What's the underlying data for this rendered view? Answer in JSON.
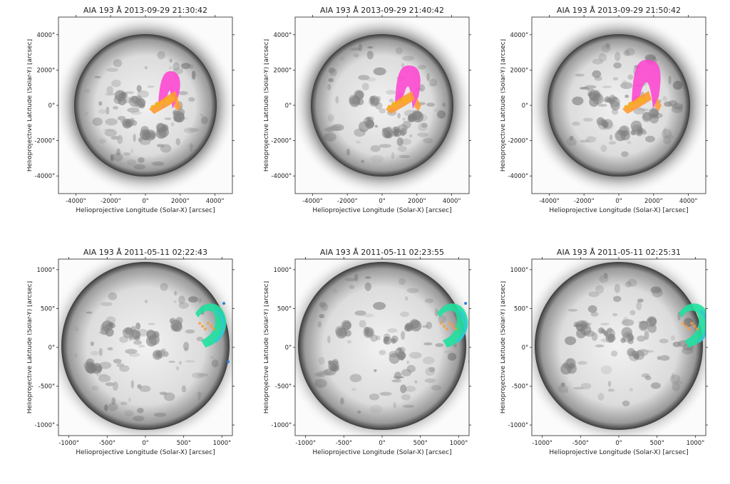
{
  "figure": {
    "panels": [
      {
        "title": "AIA 193 Å 2013-09-29 21:30:42",
        "xlabel": "Helioprojective Longitude (Solar-X) [arcsec]",
        "ylabel": "Helioprojective Latitude (Solar-Y) [arcsec]",
        "xticks": [
          "-4000\"",
          "-2000\"",
          "0\"",
          "2000\"",
          "4000\""
        ],
        "yticks": [
          "4000\"",
          "2000\"",
          "0\"",
          "-2000\"",
          "-4000\""
        ],
        "overlay": "magenta-orange"
      },
      {
        "title": "AIA 193 Å 2013-09-29 21:40:42",
        "xlabel": "Helioprojective Longitude (Solar-X) [arcsec]",
        "ylabel": "Helioprojective Latitude (Solar-Y) [arcsec]",
        "xticks": [
          "-4000\"",
          "-2000\"",
          "0\"",
          "2000\"",
          "4000\""
        ],
        "yticks": [
          "4000\"",
          "2000\"",
          "0\"",
          "-2000\"",
          "-4000\""
        ],
        "overlay": "magenta-orange"
      },
      {
        "title": "AIA 193 Å 2013-09-29 21:50:42",
        "xlabel": "Helioprojective Longitude (Solar-X) [arcsec]",
        "ylabel": "Helioprojective Latitude (Solar-Y) [arcsec]",
        "xticks": [
          "-4000\"",
          "-2000\"",
          "0\"",
          "2000\"",
          "4000\""
        ],
        "yticks": [
          "4000\"",
          "2000\"",
          "0\"",
          "-2000\"",
          "-4000\""
        ],
        "overlay": "magenta-orange"
      },
      {
        "title": "AIA 193 Å 2011-05-11 02:22:43",
        "xlabel": "Helioprojective Longitude (Solar-X) [arcsec]",
        "ylabel": "Helioprojective Latitude (Solar-Y) [arcsec]",
        "xticks": [
          "-1000\"",
          "-500\"",
          "0\"",
          "500\"",
          "1000\""
        ],
        "yticks": [
          "1000\"",
          "500\"",
          "0\"",
          "-500\"",
          "-1000\""
        ],
        "overlay": "green-cyan"
      },
      {
        "title": "AIA 193 Å 2011-05-11 02:23:55",
        "xlabel": "Helioprojective Longitude (Solar-X) [arcsec]",
        "ylabel": "Helioprojective Latitude (Solar-Y) [arcsec]",
        "xticks": [
          "-1000\"",
          "-500\"",
          "0\"",
          "500\"",
          "1000\""
        ],
        "yticks": [
          "1000\"",
          "500\"",
          "0\"",
          "-500\"",
          "-1000\""
        ],
        "overlay": "green-cyan"
      },
      {
        "title": "AIA 193 Å 2011-05-11 02:25:31",
        "xlabel": "Helioprojective Longitude (Solar-X) [arcsec]",
        "ylabel": "Helioprojective Latitude (Solar-Y) [arcsec]",
        "xticks": [
          "-1000\"",
          "-500\"",
          "0\"",
          "500\"",
          "1000\""
        ],
        "yticks": [
          "1000\"",
          "500\"",
          "0\"",
          "-500\"",
          "-1000\""
        ],
        "overlay": "green-cyan"
      }
    ]
  },
  "colors": {
    "disk_light": "#ededed",
    "disk_dark": "#3a3a3a",
    "magenta": "#ff3fd0",
    "orange": "#ff9a30",
    "gold": "#f2b020",
    "green": "#20e0a0",
    "cyan": "#30c8d8",
    "blue": "#2b7fd0"
  }
}
